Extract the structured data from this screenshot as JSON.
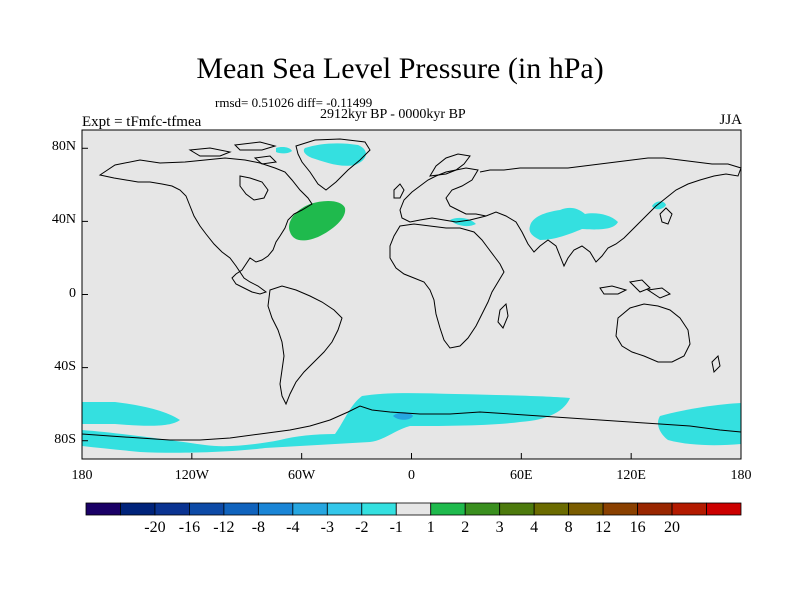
{
  "title": "Mean Sea Level Pressure (in hPa)",
  "stats": "rmsd= 0.51026 diff= -0.11499",
  "period": "2912kyr BP - 0000kyr BP",
  "experiment": "Expt = tFmfc-tfmea",
  "season": "JJA",
  "map": {
    "projection": "cylindrical-equidistant",
    "background_color": "#e6e6e6",
    "lat_ticks": [
      "80N",
      "40N",
      "0",
      "40S",
      "80S"
    ],
    "lon_ticks": [
      "180",
      "120W",
      "60W",
      "0",
      "60E",
      "120E",
      "180"
    ],
    "lat_range": [
      -90,
      90
    ],
    "lon_range": [
      -180,
      180
    ]
  },
  "colorbar": {
    "colors": [
      "#1a0066",
      "#00237a",
      "#0a3391",
      "#0d4aa6",
      "#1063bd",
      "#1a85d6",
      "#26a6e0",
      "#33c7ea",
      "#34e0e0",
      "#e6e6e6",
      "#1fba4d",
      "#3a8f1f",
      "#4d7a0d",
      "#6b6b00",
      "#7a5c00",
      "#8a4000",
      "#992600",
      "#b31a00",
      "#cc0000"
    ],
    "labels": [
      "-20",
      "-16",
      "-12",
      "-8",
      "-4",
      "-3",
      "-2",
      "-1",
      "1",
      "2",
      "3",
      "4",
      "8",
      "12",
      "16",
      "20"
    ]
  }
}
